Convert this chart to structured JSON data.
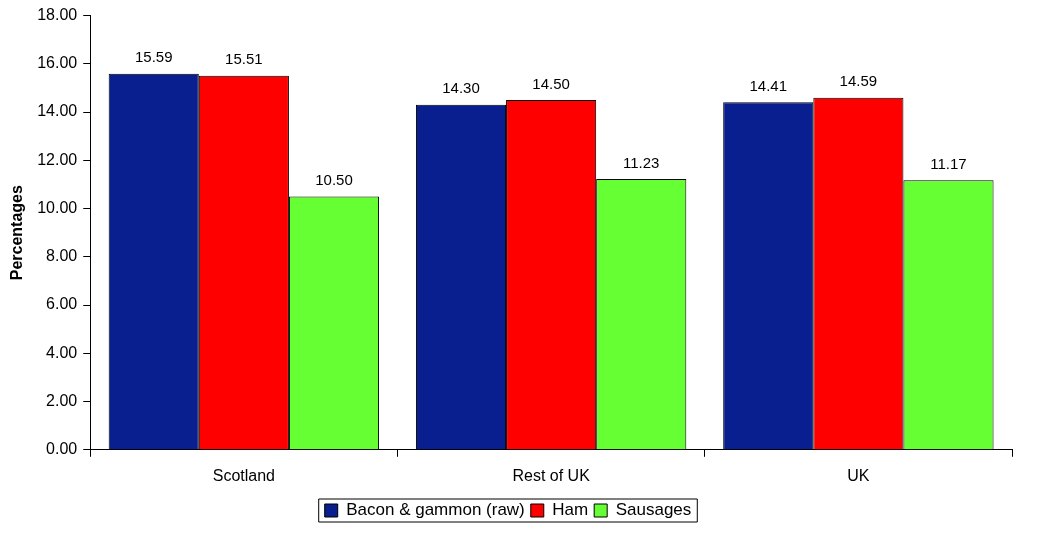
{
  "chart_data": {
    "type": "bar",
    "ylabel": "Percentages",
    "categories": [
      "Scotland",
      "Rest of UK",
      "UK"
    ],
    "series": [
      {
        "name": "Bacon & gammon (raw)",
        "color": "#0a1f8f",
        "values": [
          15.59,
          14.3,
          14.41
        ],
        "value_labels": [
          "15.59",
          "14.30",
          "14.41"
        ]
      },
      {
        "name": "Ham",
        "color": "#ff0000",
        "values": [
          15.51,
          14.5,
          14.59
        ],
        "value_labels": [
          "15.51",
          "14.50",
          "14.59"
        ]
      },
      {
        "name": "Sausages",
        "color": "#66ff33",
        "values": [
          10.5,
          11.23,
          11.17
        ],
        "value_labels": [
          "10.50",
          "11.23",
          "11.17"
        ]
      }
    ],
    "ylim": [
      0,
      18
    ],
    "yticks": [
      {
        "value": 0,
        "label": "0.00"
      },
      {
        "value": 2,
        "label": "2.00"
      },
      {
        "value": 4,
        "label": "4.00"
      },
      {
        "value": 6,
        "label": "6.00"
      },
      {
        "value": 8,
        "label": "8.00"
      },
      {
        "value": 10,
        "label": "10.00"
      },
      {
        "value": 12,
        "label": "12.00"
      },
      {
        "value": 14,
        "label": "14.00"
      },
      {
        "value": 16,
        "label": "16.00"
      },
      {
        "value": 18,
        "label": "18.00"
      }
    ],
    "grid": false,
    "legend": "bottom"
  }
}
